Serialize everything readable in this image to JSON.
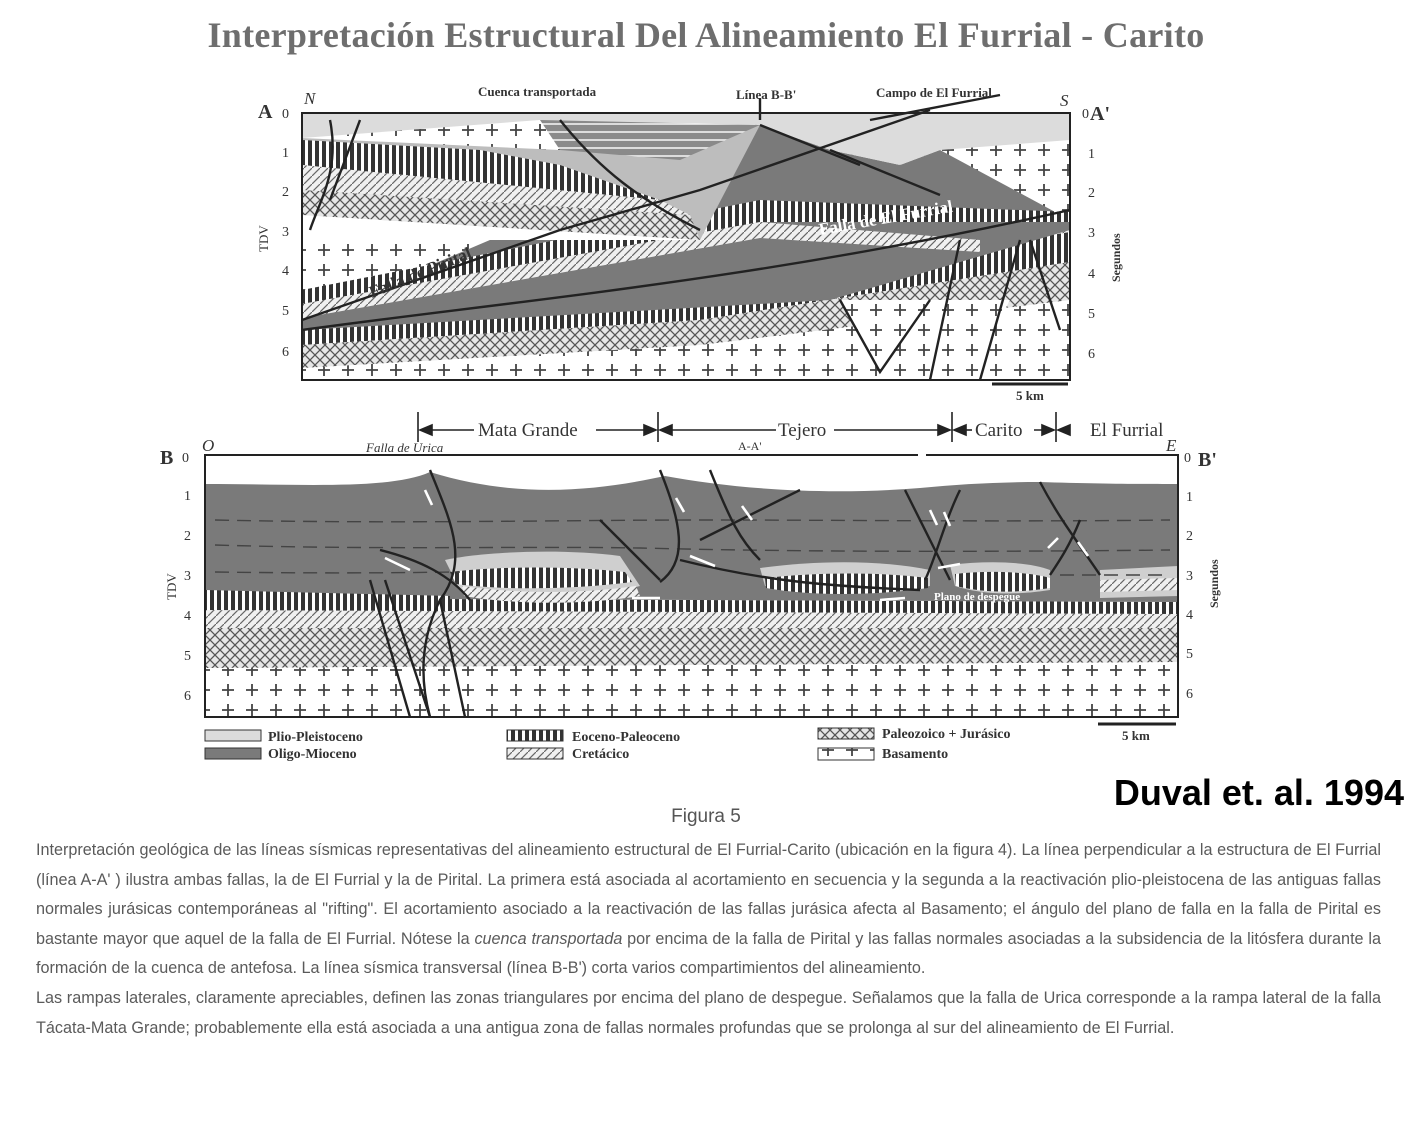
{
  "title": "Interpretación Estructural  Del  Alineamiento El Furrial - Carito",
  "section_a": {
    "left_label": "A",
    "right_label": "A'",
    "north": "N",
    "south": "S",
    "left_axis_title": "TDV",
    "right_axis_title": "Segundos",
    "ticks": [
      "0",
      "1",
      "2",
      "3",
      "4",
      "5",
      "6"
    ],
    "annotations": {
      "cuenca": "Cuenca transportada",
      "linea": "Línea B-B'",
      "campo": "Campo de El Furrial",
      "falla_furrial": "Falla de  El Furrial",
      "falla_pirital": "Falla de Pirital"
    },
    "scale": "5 km"
  },
  "section_b": {
    "left_label": "B",
    "right_label": "B'",
    "west": "O",
    "east": "E",
    "left_axis_title": "TDV",
    "right_axis_title": "Segundos",
    "ticks": [
      "0",
      "1",
      "2",
      "3",
      "4",
      "5",
      "6"
    ],
    "zones": {
      "mata_grande": "Mata Grande",
      "tejero": "Tejero",
      "carito": "Carito",
      "el_furrial": "El Furrial"
    },
    "annotations": {
      "falla_urica": "Falla de Urica",
      "aa_marker": "A-A'",
      "plano": "Plano de despegue"
    },
    "scale": "5 km"
  },
  "legend": {
    "plio": "Plio-Pleistoceno",
    "oligo": "Oligo-Mioceno",
    "eoceno": "Eoceno-Paleoceno",
    "cretacico": "Cretácico",
    "paleozoico": "Paleozoico + Jurásico",
    "basamento": "Basamento"
  },
  "credit": "Duval et. al. 1994",
  "figure_label": "Figura 5",
  "caption_p1": "Interpretación geológica de las líneas sísmicas representativas del alineamiento estructural de El Furrial-Carito (ubicación en la figura 4). La línea perpendicular a la estructura de El Furrial (línea A-A' ) ilustra ambas fallas, la de El Furrial y la de Pirital. La primera está asociada al acortamiento en secuencia y la segunda a la reactivación plio-pleistocena de las antiguas fallas normales jurásicas contemporáneas al \"rifting\". El acortamiento asociado a la reactivación de las fallas jurásica afecta al Basamento; el ángulo del plano de falla en la falla de Pirital es bastante mayor que aquel de la falla de El Furrial. Nótese la ",
  "caption_p1_italic": "cuenca transportada",
  "caption_p1_end": " por encima de la falla de Pirital y las fallas normales asociadas a la subsidencia de la litósfera durante la formación de la cuenca de antefosa. La línea sísmica transversal (línea B-B') corta varios compartimientos del alineamiento.",
  "caption_p2": "Las rampas laterales, claramente apreciables, definen las zonas triangulares por encima del plano de despegue. Señalamos que la falla de Urica corresponde a la rampa lateral de la falla Tácata-Mata Grande; probablemente ella está asociada a una antigua zona de fallas normales profundas que se prolonga al sur del alineamiento de El Furrial.",
  "colors": {
    "plio": "#d8d8d8",
    "oligo": "#7a7a7a",
    "line": "#2a2a2a"
  }
}
